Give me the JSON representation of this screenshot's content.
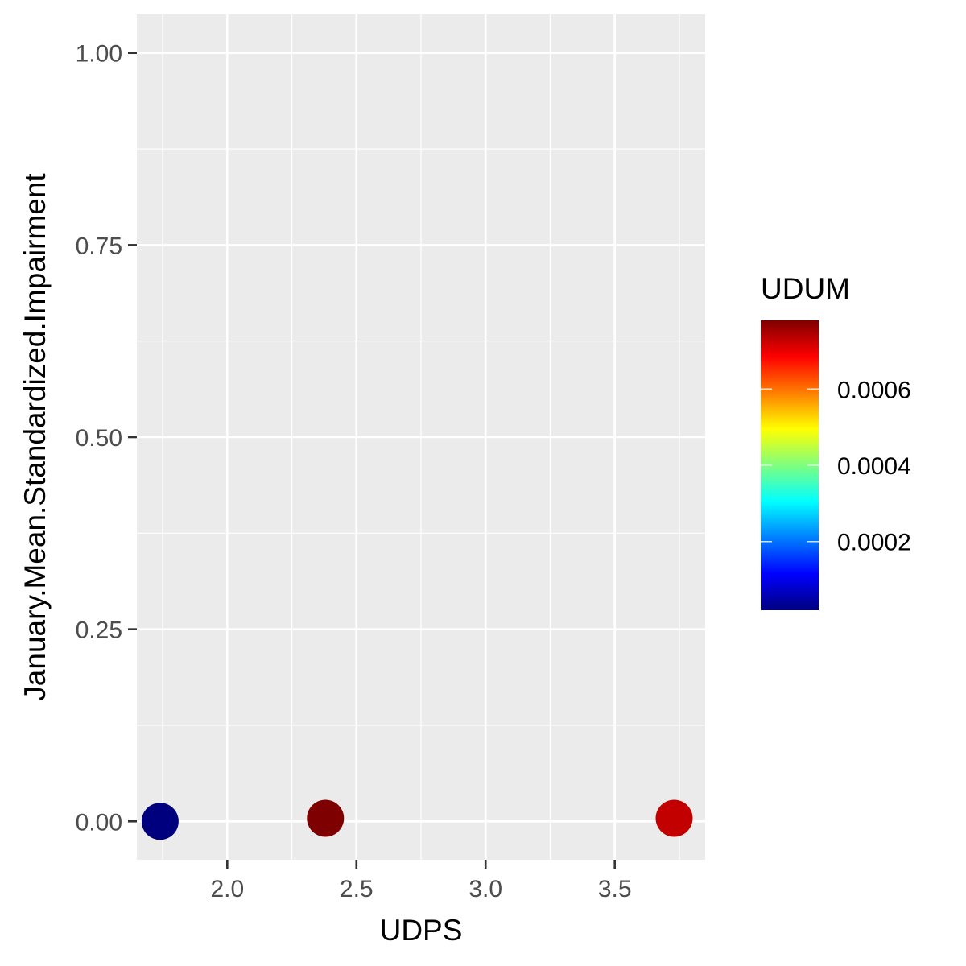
{
  "chart_data": {
    "type": "scatter",
    "xlabel": "UDPS",
    "ylabel": "January.Mean.Standardized.Impairment",
    "xlim": [
      1.65,
      3.85
    ],
    "ylim": [
      -0.05,
      1.05
    ],
    "x_ticks": [
      2.0,
      2.5,
      3.0,
      3.5
    ],
    "x_tick_labels": [
      "2.0",
      "2.5",
      "3.0",
      "3.5"
    ],
    "y_ticks": [
      0.0,
      0.25,
      0.5,
      0.75,
      1.0
    ],
    "y_tick_labels": [
      "0.00",
      "0.25",
      "0.50",
      "0.75",
      "1.00"
    ],
    "grid": true,
    "points": [
      {
        "x": 1.74,
        "y": 0.0,
        "color_value": 2e-05
      },
      {
        "x": 2.38,
        "y": 0.004,
        "color_value": 0.00078
      },
      {
        "x": 3.73,
        "y": 0.004,
        "color_value": 0.00073
      }
    ],
    "color_scale": {
      "title": "UDUM",
      "min": 2e-05,
      "max": 0.00078,
      "ticks": [
        0.0002,
        0.0004,
        0.0006
      ],
      "tick_labels": [
        "0.0002",
        "0.0004",
        "0.0006"
      ],
      "colors": [
        "#00007F",
        "#0000FF",
        "#007FFF",
        "#00FFFF",
        "#7FFF7F",
        "#FFFF00",
        "#FF7F00",
        "#FF0000",
        "#7F0000"
      ]
    },
    "legend_position": "right"
  },
  "colors": {
    "panel_background": "#EBEBEB",
    "grid_major": "#FFFFFF",
    "tick_text": "#4D4D4D"
  }
}
